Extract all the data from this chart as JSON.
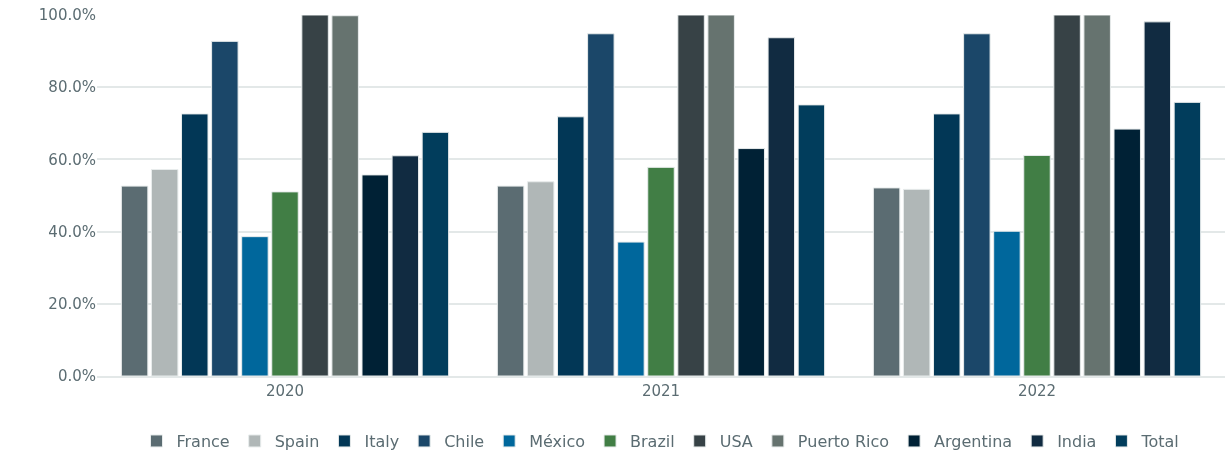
{
  "chart_data": {
    "type": "bar",
    "categories": [
      "2020",
      "2021",
      "2022"
    ],
    "series": [
      {
        "name": "France",
        "color": "#5b6c72",
        "values": [
          52.6,
          52.6,
          52.1
        ]
      },
      {
        "name": "Spain",
        "color": "#b0b7b7",
        "values": [
          57.2,
          53.8,
          51.7
        ]
      },
      {
        "name": "Italy",
        "color": "#023756",
        "values": [
          72.6,
          71.8,
          72.6
        ]
      },
      {
        "name": "Chile",
        "color": "#1b4769",
        "values": [
          92.7,
          94.8,
          94.8
        ]
      },
      {
        "name": "México",
        "color": "#00679c",
        "values": [
          38.6,
          37.1,
          40.1
        ]
      },
      {
        "name": "Brazil",
        "color": "#417e45",
        "values": [
          51.0,
          57.8,
          61.1
        ]
      },
      {
        "name": "USA",
        "color": "#374246",
        "values": [
          100,
          100,
          100
        ]
      },
      {
        "name": "Puerto Rico",
        "color": "#66736f",
        "values": [
          99.8,
          100,
          100
        ]
      },
      {
        "name": "Argentina",
        "color": "#002135",
        "values": [
          55.7,
          63.0,
          68.4
        ]
      },
      {
        "name": "India",
        "color": "#112b41",
        "values": [
          61.0,
          93.7,
          98.1
        ]
      },
      {
        "name": "Total",
        "color": "#013d5c",
        "values": [
          67.5,
          75.1,
          75.8
        ]
      }
    ],
    "ylim": [
      0,
      100
    ],
    "yticks": [
      {
        "value": 0,
        "label": "0.0%"
      },
      {
        "value": 20,
        "label": "20.0%"
      },
      {
        "value": 40,
        "label": "40.0%"
      },
      {
        "value": 60,
        "label": "60.0%"
      },
      {
        "value": 80,
        "label": "80.0%"
      },
      {
        "value": 100,
        "label": "100.0%"
      }
    ],
    "grid": "y",
    "legend": "bottom"
  }
}
